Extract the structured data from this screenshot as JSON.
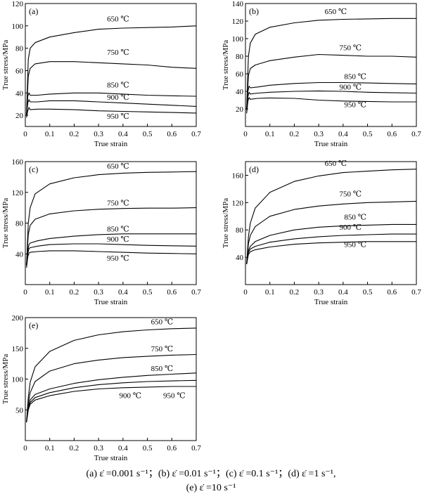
{
  "chart_data": [
    {
      "panel": "(a)",
      "type": "line",
      "xlabel": "True strain",
      "ylabel": "True stress/MPa",
      "xlim": [
        0,
        0.7
      ],
      "ylim": [
        10,
        120
      ],
      "xticks": [
        "0",
        "0.1",
        "0.2",
        "0.3",
        "0.4",
        "0.5",
        "0.6",
        "0.7"
      ],
      "yticks": [
        "20",
        "40",
        "60",
        "80",
        "100",
        "120"
      ],
      "grid": false,
      "series": [
        {
          "name": "650 ℃",
          "x": [
            0.005,
            0.012,
            0.02,
            0.04,
            0.1,
            0.2,
            0.3,
            0.4,
            0.5,
            0.6,
            0.7
          ],
          "y": [
            20,
            70,
            80,
            85,
            90,
            94,
            97,
            98,
            98.5,
            99,
            100
          ]
        },
        {
          "name": "750 ℃",
          "x": [
            0.005,
            0.012,
            0.02,
            0.04,
            0.1,
            0.2,
            0.3,
            0.4,
            0.5,
            0.6,
            0.7
          ],
          "y": [
            20,
            55,
            62,
            66,
            68,
            68,
            67,
            66,
            65,
            63,
            62
          ]
        },
        {
          "name": "850 ℃",
          "x": [
            0.005,
            0.01,
            0.015,
            0.02,
            0.05,
            0.1,
            0.2,
            0.3,
            0.4,
            0.5,
            0.6,
            0.7
          ],
          "y": [
            20,
            37,
            40,
            38,
            38,
            39,
            40,
            40,
            39,
            38,
            37.5,
            37
          ]
        },
        {
          "name": "900 ℃",
          "x": [
            0.005,
            0.01,
            0.015,
            0.02,
            0.05,
            0.1,
            0.2,
            0.3,
            0.4,
            0.5,
            0.6,
            0.7
          ],
          "y": [
            20,
            31,
            34,
            32,
            32,
            33,
            33,
            32,
            31,
            30,
            29,
            28
          ]
        },
        {
          "name": "950 ℃",
          "x": [
            0.005,
            0.01,
            0.015,
            0.02,
            0.05,
            0.1,
            0.2,
            0.3,
            0.4,
            0.5,
            0.6,
            0.7
          ],
          "y": [
            18,
            24,
            27,
            25,
            25.5,
            25.5,
            25,
            24,
            23.5,
            23,
            22.5,
            22
          ]
        }
      ],
      "labels": [
        {
          "text": "650 ℃",
          "x": 0.38,
          "y": 104
        },
        {
          "text": "750 ℃",
          "x": 0.38,
          "y": 74
        },
        {
          "text": "850 ℃",
          "x": 0.38,
          "y": 45
        },
        {
          "text": "900 ℃",
          "x": 0.38,
          "y": 34
        },
        {
          "text": "950 ℃",
          "x": 0.38,
          "y": 17
        }
      ]
    },
    {
      "panel": "(b)",
      "type": "line",
      "xlabel": "True strain",
      "ylabel": "True stress/MPa",
      "xlim": [
        0,
        0.7
      ],
      "ylim": [
        0,
        140
      ],
      "xticks": [
        "0",
        "0.1",
        "0.2",
        "0.3",
        "0.4",
        "0.5",
        "0.6",
        "0.7"
      ],
      "yticks": [
        "20",
        "40",
        "60",
        "80",
        "100",
        "120",
        "140"
      ],
      "grid": false,
      "series": [
        {
          "name": "650 ℃",
          "x": [
            0.005,
            0.012,
            0.02,
            0.04,
            0.1,
            0.2,
            0.3,
            0.4,
            0.5,
            0.6,
            0.7
          ],
          "y": [
            20,
            80,
            95,
            105,
            113,
            118,
            121,
            122,
            122.5,
            123,
            123
          ]
        },
        {
          "name": "750 ℃",
          "x": [
            0.005,
            0.012,
            0.02,
            0.04,
            0.1,
            0.2,
            0.3,
            0.4,
            0.5,
            0.6,
            0.7
          ],
          "y": [
            20,
            58,
            66,
            70,
            75,
            79,
            82,
            81,
            80,
            80,
            79
          ]
        },
        {
          "name": "850 ℃",
          "x": [
            0.005,
            0.01,
            0.015,
            0.02,
            0.05,
            0.1,
            0.2,
            0.3,
            0.4,
            0.5,
            0.6,
            0.7
          ],
          "y": [
            20,
            40,
            46,
            44,
            45,
            47,
            49,
            50,
            50,
            49.5,
            49,
            48.5
          ]
        },
        {
          "name": "900 ℃",
          "x": [
            0.005,
            0.01,
            0.015,
            0.02,
            0.05,
            0.1,
            0.2,
            0.3,
            0.4,
            0.5,
            0.6,
            0.7
          ],
          "y": [
            18,
            34,
            39,
            37,
            38,
            39,
            40,
            40.5,
            40,
            39,
            38.5,
            38
          ]
        },
        {
          "name": "950 ℃",
          "x": [
            0.005,
            0.01,
            0.015,
            0.02,
            0.05,
            0.1,
            0.2,
            0.3,
            0.4,
            0.5,
            0.6,
            0.7
          ],
          "y": [
            15,
            29,
            33,
            31,
            32,
            32.5,
            32,
            30,
            29,
            28.5,
            28,
            28
          ]
        }
      ],
      "labels": [
        {
          "text": "650 ℃",
          "x": 0.37,
          "y": 128
        },
        {
          "text": "750 ℃",
          "x": 0.43,
          "y": 87
        },
        {
          "text": "850 ℃",
          "x": 0.45,
          "y": 54
        },
        {
          "text": "900 ℃",
          "x": 0.43,
          "y": 42
        },
        {
          "text": "950 ℃",
          "x": 0.45,
          "y": 22
        }
      ]
    },
    {
      "panel": "(c)",
      "type": "line",
      "xlabel": "True strain",
      "ylabel": "True stress/MPa",
      "xlim": [
        0,
        0.7
      ],
      "ylim": [
        0,
        160
      ],
      "xticks": [
        "0",
        "0.1",
        "0.2",
        "0.3",
        "0.4",
        "0.5",
        "0.6",
        "0.7"
      ],
      "yticks": [
        "40",
        "80",
        "120",
        "160"
      ],
      "grid": false,
      "series": [
        {
          "name": "650 ℃",
          "x": [
            0.005,
            0.012,
            0.02,
            0.04,
            0.1,
            0.2,
            0.3,
            0.4,
            0.5,
            0.6,
            0.7
          ],
          "y": [
            25,
            80,
            100,
            118,
            131,
            139,
            143,
            145,
            146,
            146.5,
            147
          ]
        },
        {
          "name": "750 ℃",
          "x": [
            0.005,
            0.012,
            0.02,
            0.04,
            0.1,
            0.2,
            0.3,
            0.4,
            0.5,
            0.6,
            0.7
          ],
          "y": [
            25,
            65,
            77,
            85,
            92,
            96,
            98,
            99,
            99.5,
            99.5,
            100
          ]
        },
        {
          "name": "850 ℃",
          "x": [
            0.005,
            0.01,
            0.015,
            0.02,
            0.05,
            0.1,
            0.2,
            0.3,
            0.4,
            0.5,
            0.6,
            0.7
          ],
          "y": [
            25,
            45,
            52,
            54,
            57,
            60,
            63,
            65,
            66,
            66,
            66,
            66
          ]
        },
        {
          "name": "900 ℃",
          "x": [
            0.005,
            0.01,
            0.015,
            0.02,
            0.05,
            0.1,
            0.2,
            0.3,
            0.4,
            0.5,
            0.6,
            0.7
          ],
          "y": [
            25,
            40,
            47,
            48,
            50,
            52,
            53,
            53,
            52,
            51,
            50.5,
            50
          ]
        },
        {
          "name": "950 ℃",
          "x": [
            0.005,
            0.01,
            0.015,
            0.02,
            0.05,
            0.1,
            0.2,
            0.3,
            0.4,
            0.5,
            0.6,
            0.7
          ],
          "y": [
            22,
            36,
            41,
            42,
            43,
            44,
            44,
            43,
            42,
            41,
            40.5,
            40
          ]
        }
      ],
      "labels": [
        {
          "text": "650 ℃",
          "x": 0.38,
          "y": 151
        },
        {
          "text": "750 ℃",
          "x": 0.38,
          "y": 103
        },
        {
          "text": "850 ℃",
          "x": 0.38,
          "y": 69
        },
        {
          "text": "900 ℃",
          "x": 0.38,
          "y": 56
        },
        {
          "text": "950 ℃",
          "x": 0.38,
          "y": 31
        }
      ]
    },
    {
      "panel": "(d)",
      "type": "line",
      "xlabel": "True strain",
      "ylabel": "True stress/MPa",
      "xlim": [
        0,
        0.7
      ],
      "ylim": [
        0,
        180
      ],
      "xticks": [
        "0",
        "0.1",
        "0.2",
        "0.3",
        "0.4",
        "0.5",
        "0.6",
        "0.7"
      ],
      "yticks": [
        "40",
        "80",
        "120",
        "160"
      ],
      "grid": false,
      "series": [
        {
          "name": "650 ℃",
          "x": [
            0.005,
            0.012,
            0.02,
            0.04,
            0.1,
            0.2,
            0.3,
            0.4,
            0.5,
            0.6,
            0.7
          ],
          "y": [
            30,
            70,
            90,
            112,
            135,
            151,
            159,
            164,
            166,
            168,
            169
          ]
        },
        {
          "name": "750 ℃",
          "x": [
            0.005,
            0.012,
            0.02,
            0.04,
            0.1,
            0.2,
            0.3,
            0.4,
            0.5,
            0.6,
            0.7
          ],
          "y": [
            30,
            60,
            72,
            85,
            100,
            110,
            115,
            118,
            120,
            121,
            122
          ]
        },
        {
          "name": "850 ℃",
          "x": [
            0.005,
            0.012,
            0.02,
            0.04,
            0.1,
            0.2,
            0.3,
            0.4,
            0.5,
            0.6,
            0.7
          ],
          "y": [
            30,
            50,
            56,
            63,
            72,
            80,
            84,
            86,
            87,
            88,
            88
          ]
        },
        {
          "name": "900 ℃",
          "x": [
            0.005,
            0.012,
            0.02,
            0.04,
            0.1,
            0.2,
            0.3,
            0.4,
            0.5,
            0.6,
            0.7
          ],
          "y": [
            30,
            47,
            52,
            56,
            62,
            67,
            70,
            72,
            73,
            74,
            74
          ]
        },
        {
          "name": "950 ℃",
          "x": [
            0.005,
            0.012,
            0.02,
            0.04,
            0.1,
            0.2,
            0.3,
            0.4,
            0.5,
            0.6,
            0.7
          ],
          "y": [
            30,
            44,
            48,
            51,
            55,
            59,
            61,
            62,
            63,
            63,
            63
          ]
        }
      ],
      "labels": [
        {
          "text": "650 ℃",
          "x": 0.37,
          "y": 174
        },
        {
          "text": "750 ℃",
          "x": 0.43,
          "y": 129
        },
        {
          "text": "850 ℃",
          "x": 0.45,
          "y": 95
        },
        {
          "text": "900 ℃",
          "x": 0.43,
          "y": 80
        },
        {
          "text": "950 ℃",
          "x": 0.45,
          "y": 55
        }
      ]
    },
    {
      "panel": "(e)",
      "type": "line",
      "xlabel": "True strain",
      "ylabel": "True stress/MPa",
      "xlim": [
        0,
        0.7
      ],
      "ylim": [
        0,
        200
      ],
      "xticks": [
        "0",
        "0.1",
        "0.2",
        "0.3",
        "0.4",
        "0.5",
        "0.6",
        "0.7"
      ],
      "yticks": [
        "50",
        "100",
        "150",
        "200"
      ],
      "grid": false,
      "series": [
        {
          "name": "650 ℃",
          "x": [
            0.005,
            0.012,
            0.02,
            0.04,
            0.1,
            0.2,
            0.3,
            0.4,
            0.5,
            0.6,
            0.7
          ],
          "y": [
            30,
            70,
            95,
            120,
            145,
            163,
            172,
            177,
            180,
            182,
            183
          ]
        },
        {
          "name": "750 ℃",
          "x": [
            0.005,
            0.012,
            0.02,
            0.04,
            0.1,
            0.2,
            0.3,
            0.4,
            0.5,
            0.6,
            0.7
          ],
          "y": [
            30,
            60,
            78,
            96,
            113,
            125,
            131,
            135,
            137,
            139,
            140
          ]
        },
        {
          "name": "850 ℃",
          "x": [
            0.005,
            0.012,
            0.02,
            0.04,
            0.1,
            0.2,
            0.3,
            0.4,
            0.5,
            0.6,
            0.7
          ],
          "y": [
            30,
            55,
            66,
            75,
            84,
            93,
            99,
            103,
            106,
            108,
            110
          ]
        },
        {
          "name": "900 ℃",
          "x": [
            0.005,
            0.012,
            0.02,
            0.04,
            0.1,
            0.2,
            0.3,
            0.4,
            0.5,
            0.6,
            0.7
          ],
          "y": [
            30,
            52,
            62,
            70,
            78,
            86,
            91,
            94,
            96,
            97,
            98
          ]
        },
        {
          "name": "950 ℃",
          "x": [
            0.005,
            0.012,
            0.02,
            0.04,
            0.1,
            0.2,
            0.3,
            0.4,
            0.5,
            0.6,
            0.7
          ],
          "y": [
            30,
            50,
            59,
            66,
            73,
            80,
            84,
            86,
            87,
            88,
            88
          ]
        }
      ],
      "labels": [
        {
          "text": "650 ℃",
          "x": 0.56,
          "y": 189
        },
        {
          "text": "750 ℃",
          "x": 0.56,
          "y": 145
        },
        {
          "text": "850 ℃",
          "x": 0.56,
          "y": 113
        },
        {
          "text": "900 ℃",
          "x": 0.43,
          "y": 69
        },
        {
          "text": "950 ℃",
          "x": 0.61,
          "y": 69
        }
      ]
    }
  ],
  "caption": {
    "line1": "(a)  ε̇ =0.001 s⁻¹；(b)  ε̇ =0.01 s⁻¹；(c)  ε̇ =0.1 s⁻¹；(d)  ε̇ =1 s⁻¹,",
    "line2": "(e)  ε̇ =10 s⁻¹"
  }
}
